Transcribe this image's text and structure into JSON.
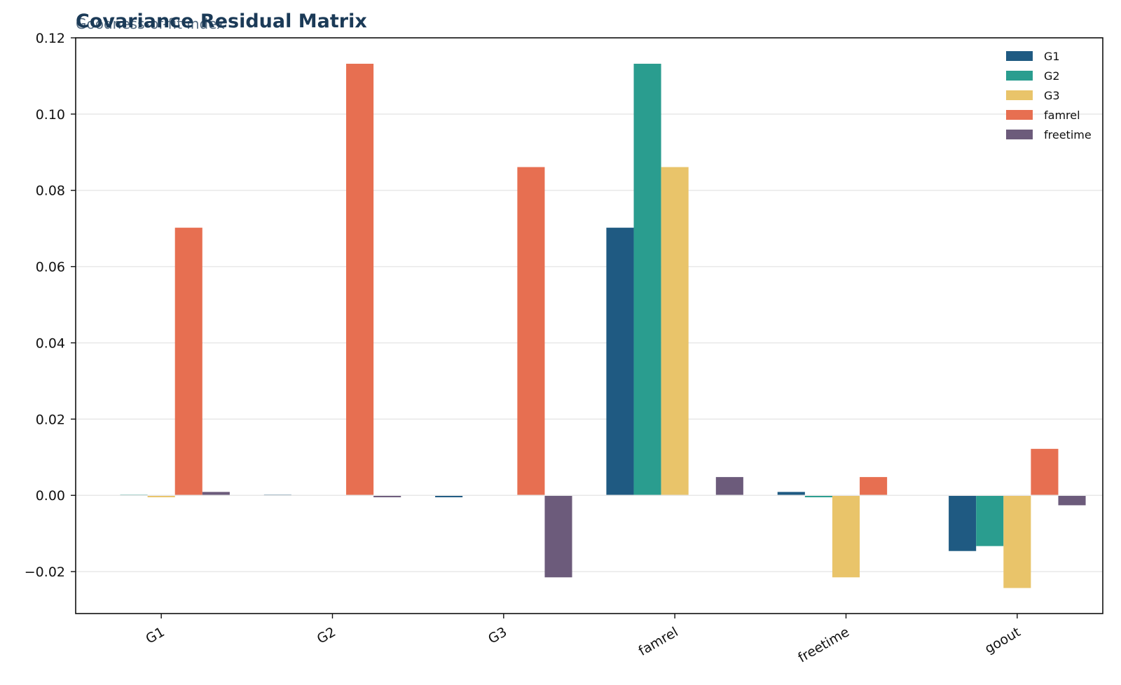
{
  "chart_data": {
    "type": "bar",
    "title": "Covariance Residual Matrix",
    "subtitle": "Goodness-of-fit index",
    "xlabel": "",
    "ylabel": "",
    "categories": [
      "G1",
      "G2",
      "G3",
      "famrel",
      "freetime",
      "goout"
    ],
    "series": [
      {
        "name": "G1",
        "color": "#1f5a82",
        "values": [
          0.0,
          0.0002,
          -0.0005,
          0.0702,
          0.0009,
          -0.0146
        ]
      },
      {
        "name": "G2",
        "color": "#2a9d8f",
        "values": [
          0.0002,
          0.0,
          0.0,
          0.1132,
          -0.0005,
          -0.0133
        ]
      },
      {
        "name": "G3",
        "color": "#e9c46a",
        "values": [
          -0.0005,
          0.0,
          0.0,
          0.0861,
          -0.0215,
          -0.0243
        ]
      },
      {
        "name": "famrel",
        "color": "#e76f51",
        "values": [
          0.0702,
          0.1132,
          0.0861,
          0.0,
          0.0048,
          0.0122
        ]
      },
      {
        "name": "freetime",
        "color": "#6c5b7b",
        "values": [
          0.0009,
          -0.0005,
          -0.0215,
          0.0048,
          0.0,
          -0.0026
        ]
      }
    ],
    "ylim": [
      -0.031,
      0.12
    ],
    "yticks": [
      -0.02,
      0.0,
      0.02,
      0.04,
      0.06,
      0.08,
      0.1,
      0.12
    ],
    "ytick_labels": [
      "−0.02",
      "0.00",
      "0.02",
      "0.04",
      "0.06",
      "0.08",
      "0.10",
      "0.12"
    ],
    "grid": "y",
    "legend_position": "top-right"
  }
}
